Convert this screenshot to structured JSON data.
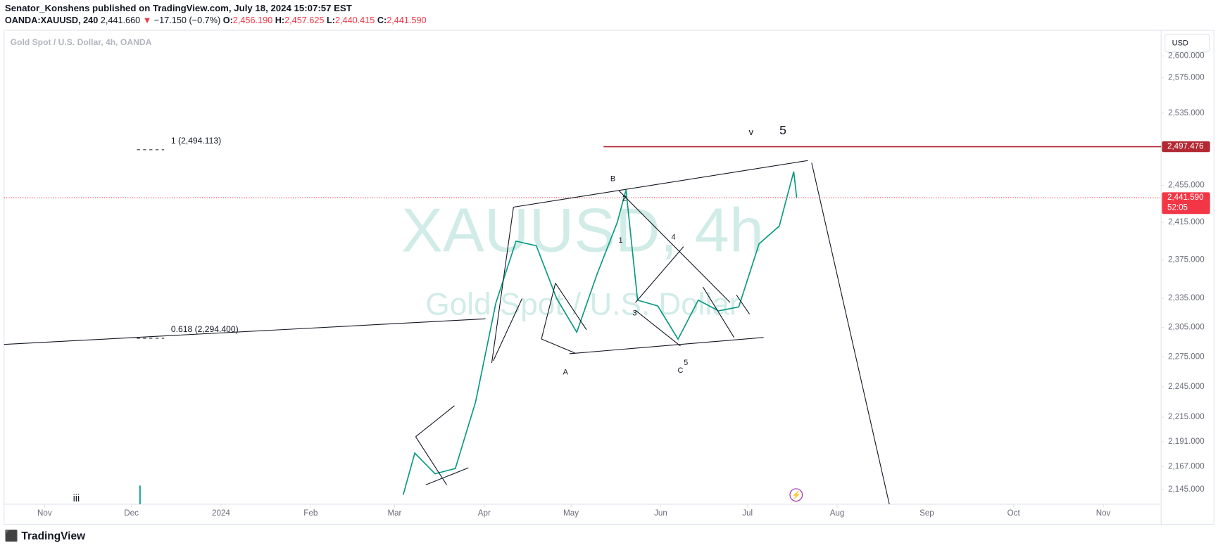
{
  "header": {
    "publisher": "Senator_Konshens published on TradingView.com, July 18, 2024 15:07:57 EST",
    "symbol": "OANDA:XAUUSD, 240",
    "last": "2,441.660",
    "arrow": "▼",
    "change": "−17.150 (−0.7%)",
    "o_label": "O:",
    "o": "2,456.190",
    "h_label": "H:",
    "h": "2,457.625",
    "l_label": "L:",
    "l": "2,440.415",
    "c_label": "C:",
    "c": "2,441.590"
  },
  "legend": "Gold Spot / U.S. Dollar, 4h, OANDA",
  "currency_button": "USD",
  "watermark": {
    "line1": "XAUUSD, 4h",
    "line2": "Gold Spot / U.S. Dollar"
  },
  "annotations": {
    "fib1": "1 (2,494.113)",
    "fib0618": "0.618 (2,294.400)",
    "v": "v",
    "five_big": "5",
    "B": "B",
    "A": "A",
    "C": "C",
    "w1": "1",
    "w2": "2",
    "w3": "3",
    "w4": "4",
    "w5": "5",
    "iii": "iii"
  },
  "logo": "TradingView",
  "chart_data": {
    "type": "line",
    "log_scale": true,
    "xlim": [
      "2023-10-18",
      "2024-11-21"
    ],
    "ylim": [
      2131,
      2629
    ],
    "xticks": [
      {
        "value": "2023-11",
        "label": "Nov"
      },
      {
        "value": "2023-12",
        "label": "Dec"
      },
      {
        "value": "2024-01",
        "label": "2024"
      },
      {
        "value": "2024-02",
        "label": "Feb"
      },
      {
        "value": "2024-03",
        "label": "Mar"
      },
      {
        "value": "2024-04",
        "label": "Apr"
      },
      {
        "value": "2024-05",
        "label": "May"
      },
      {
        "value": "2024-06",
        "label": "Jun"
      },
      {
        "value": "2024-07",
        "label": "Jul"
      },
      {
        "value": "2024-08",
        "label": "Aug"
      },
      {
        "value": "2024-09",
        "label": "Sep"
      },
      {
        "value": "2024-10",
        "label": "Oct"
      },
      {
        "value": "2024-11",
        "label": "Nov"
      }
    ],
    "yticks": [
      {
        "value": 2600,
        "label": "2,600.000"
      },
      {
        "value": 2575,
        "label": "2,575.000"
      },
      {
        "value": 2535,
        "label": "2,535.000"
      },
      {
        "value": 2455,
        "label": "2,455.000"
      },
      {
        "value": 2415,
        "label": "2,415.000"
      },
      {
        "value": 2375,
        "label": "2,375.000"
      },
      {
        "value": 2335,
        "label": "2,335.000"
      },
      {
        "value": 2305,
        "label": "2,305.000"
      },
      {
        "value": 2275,
        "label": "2,275.000"
      },
      {
        "value": 2245,
        "label": "2,245.000"
      },
      {
        "value": 2215,
        "label": "2,215.000"
      },
      {
        "value": 2191,
        "label": "2,191.000"
      },
      {
        "value": 2167,
        "label": "2,167.000"
      },
      {
        "value": 2145,
        "label": "2,145.000"
      }
    ],
    "x": [
      "2024-03-04",
      "2024-03-08",
      "2024-03-15",
      "2024-03-22",
      "2024-03-29",
      "2024-04-05",
      "2024-04-12",
      "2024-04-19",
      "2024-04-26",
      "2024-05-03",
      "2024-05-10",
      "2024-05-17",
      "2024-05-20",
      "2024-05-24",
      "2024-05-31",
      "2024-06-07",
      "2024-06-14",
      "2024-06-21",
      "2024-06-28",
      "2024-07-05",
      "2024-07-12",
      "2024-07-17",
      "2024-07-18"
    ],
    "series": [
      {
        "name": "XAUUSD",
        "color": "#089981",
        "values": [
          2140,
          2180,
          2160,
          2165,
          2230,
          2330,
          2395,
          2390,
          2335,
          2300,
          2360,
          2415,
          2450,
          2333,
          2327,
          2293,
          2333,
          2322,
          2326,
          2392,
          2411,
          2470,
          2441.59
        ]
      }
    ],
    "levels": [
      {
        "value": 2497.476,
        "label": "2,497.476",
        "color": "#b22833"
      },
      {
        "value": 2441.59,
        "label": "2,441.590",
        "sublabel": "52:05",
        "color": "#f23645"
      }
    ]
  }
}
